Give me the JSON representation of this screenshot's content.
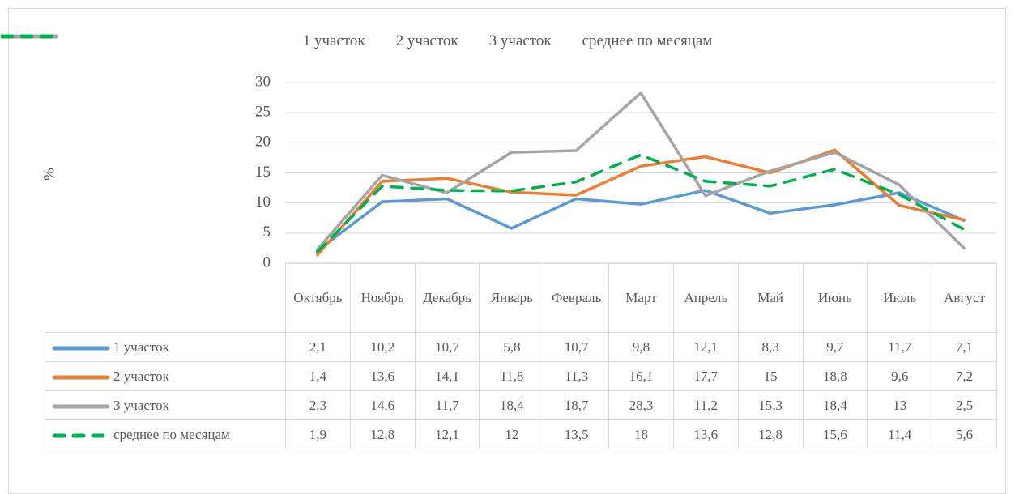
{
  "chart_data": {
    "type": "line",
    "y_label": "%",
    "categories": [
      "Октябрь",
      "Ноябрь",
      "Декабрь",
      "Январь",
      "Февраль",
      "Март",
      "Апрель",
      "Май",
      "Июнь",
      "Июль",
      "Август"
    ],
    "ylim": [
      0,
      30
    ],
    "yticks": [
      0,
      5,
      10,
      15,
      20,
      25,
      30
    ],
    "grid": true,
    "series": [
      {
        "name": "1 участок",
        "color": "#5b9bd5",
        "dashed": false,
        "values": [
          2.1,
          10.2,
          10.7,
          5.8,
          10.7,
          9.8,
          12.1,
          8.3,
          9.7,
          11.7,
          7.1
        ],
        "value_labels": [
          "2,1",
          "10,2",
          "10,7",
          "5,8",
          "10,7",
          "9,8",
          "12,1",
          "8,3",
          "9,7",
          "11,7",
          "7,1"
        ]
      },
      {
        "name": "2 участок",
        "color": "#ed7d31",
        "dashed": false,
        "values": [
          1.4,
          13.6,
          14.1,
          11.8,
          11.3,
          16.1,
          17.7,
          15,
          18.8,
          9.6,
          7.2
        ],
        "value_labels": [
          "1,4",
          "13,6",
          "14,1",
          "11,8",
          "11,3",
          "16,1",
          "17,7",
          "15",
          "18,8",
          "9,6",
          "7,2"
        ]
      },
      {
        "name": "3 участок",
        "color": "#a5a5a5",
        "dashed": false,
        "values": [
          2.3,
          14.6,
          11.7,
          18.4,
          18.7,
          28.3,
          11.2,
          15.3,
          18.4,
          13,
          2.5
        ],
        "value_labels": [
          "2,3",
          "14,6",
          "11,7",
          "18,4",
          "18,7",
          "28,3",
          "11,2",
          "15,3",
          "18,4",
          "13",
          "2,5"
        ]
      },
      {
        "name": "среднее по месяцам",
        "color": "#00b050",
        "dashed": true,
        "values": [
          1.9,
          12.8,
          12.1,
          12,
          13.5,
          18,
          13.6,
          12.8,
          15.6,
          11.4,
          5.6
        ],
        "value_labels": [
          "1,9",
          "12,8",
          "12,1",
          "12",
          "13,5",
          "18",
          "13,6",
          "12,8",
          "15,6",
          "11,4",
          "5,6"
        ]
      }
    ]
  }
}
